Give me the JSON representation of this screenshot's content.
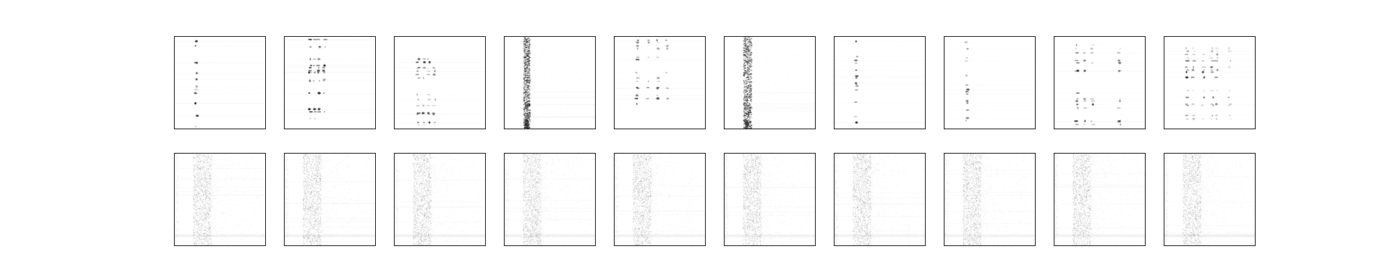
{
  "figure": {
    "rows": [
      {
        "panels": [
          {
            "style": "sparse-lines",
            "seed": 11,
            "columns": [
              0.24
            ],
            "strength": 0.9
          },
          {
            "style": "sparse-lines",
            "seed": 23,
            "columns": [
              0.28,
              0.33,
              0.38,
              0.44
            ],
            "strength": 1.0
          },
          {
            "style": "sparse-lines",
            "seed": 37,
            "columns": [
              0.26,
              0.32,
              0.38,
              0.44
            ],
            "strength": 0.8
          },
          {
            "style": "dense-band",
            "seed": 41,
            "columns": [
              0.22,
              0.26
            ],
            "strength": 1.0
          },
          {
            "style": "sparse-lines",
            "seed": 53,
            "columns": [
              0.25,
              0.37,
              0.48,
              0.58
            ],
            "strength": 0.9
          },
          {
            "style": "dense-band",
            "seed": 67,
            "columns": [
              0.22,
              0.28
            ],
            "strength": 1.0
          },
          {
            "style": "sparse-lines",
            "seed": 71,
            "columns": [
              0.24
            ],
            "strength": 0.8
          },
          {
            "style": "sparse-lines",
            "seed": 83,
            "columns": [
              0.25
            ],
            "strength": 0.7
          },
          {
            "style": "sparse-lines",
            "seed": 97,
            "columns": [
              0.25,
              0.34,
              0.42,
              0.72
            ],
            "strength": 1.0
          },
          {
            "style": "sparse-lines",
            "seed": 101,
            "columns": [
              0.25,
              0.32,
              0.43,
              0.53,
              0.58,
              0.72
            ],
            "strength": 0.9
          }
        ]
      },
      {
        "panels": [
          {
            "style": "noise-band",
            "seed": 211,
            "columns": [
              0.2,
              0.4
            ],
            "strength": 0.5
          },
          {
            "style": "noise-band",
            "seed": 223,
            "columns": [
              0.2,
              0.4
            ],
            "strength": 0.5
          },
          {
            "style": "noise-band",
            "seed": 227,
            "columns": [
              0.2,
              0.4
            ],
            "strength": 0.5
          },
          {
            "style": "noise-band",
            "seed": 229,
            "columns": [
              0.2,
              0.4
            ],
            "strength": 0.5
          },
          {
            "style": "noise-band",
            "seed": 233,
            "columns": [
              0.2,
              0.4
            ],
            "strength": 0.5
          },
          {
            "style": "noise-band",
            "seed": 239,
            "columns": [
              0.2,
              0.4
            ],
            "strength": 0.5
          },
          {
            "style": "noise-band",
            "seed": 241,
            "columns": [
              0.2,
              0.4
            ],
            "strength": 0.5
          },
          {
            "style": "noise-band",
            "seed": 251,
            "columns": [
              0.2,
              0.4
            ],
            "strength": 0.5
          },
          {
            "style": "noise-band",
            "seed": 257,
            "columns": [
              0.2,
              0.4
            ],
            "strength": 0.5
          },
          {
            "style": "noise-band",
            "seed": 263,
            "columns": [
              0.2,
              0.4
            ],
            "strength": 0.5
          }
        ]
      }
    ]
  }
}
